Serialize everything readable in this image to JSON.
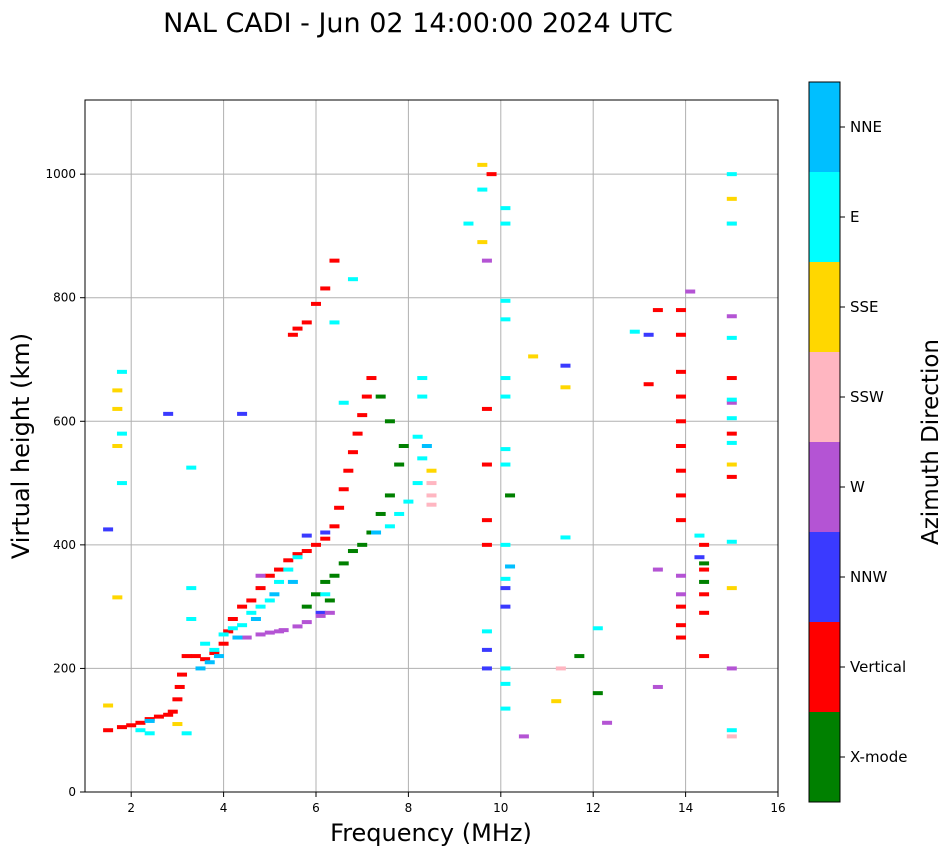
{
  "chart_data": {
    "type": "scatter",
    "title": "NAL CADI - Jun 02 14:00:00 2024 UTC",
    "xlabel": "Frequency (MHz)",
    "ylabel": "Virtual height (km)",
    "xlim": [
      1,
      16
    ],
    "ylim": [
      0,
      1120
    ],
    "xticks": [
      2,
      4,
      6,
      8,
      10,
      12,
      14,
      16
    ],
    "yticks": [
      0,
      200,
      400,
      600,
      800,
      1000
    ],
    "grid": true,
    "colorbar": {
      "label": "Azimuth Direction",
      "categories": [
        {
          "name": "X-mode",
          "color": "#008000"
        },
        {
          "name": "Vertical",
          "color": "#ff0000"
        },
        {
          "name": "NNW",
          "color": "#3a3aff"
        },
        {
          "name": "W",
          "color": "#b454d4"
        },
        {
          "name": "SSW",
          "color": "#ffb6c1"
        },
        {
          "name": "SSE",
          "color": "#ffd700"
        },
        {
          "name": "E",
          "color": "#00ffff"
        },
        {
          "name": "NNE",
          "color": "#00bfff"
        }
      ]
    },
    "series": [
      {
        "name": "Vertical",
        "points": [
          [
            1.5,
            100
          ],
          [
            1.8,
            105
          ],
          [
            2.0,
            108
          ],
          [
            2.2,
            112
          ],
          [
            2.4,
            118
          ],
          [
            2.6,
            122
          ],
          [
            2.8,
            125
          ],
          [
            2.9,
            130
          ],
          [
            3.0,
            150
          ],
          [
            3.05,
            170
          ],
          [
            3.1,
            190
          ],
          [
            3.2,
            220
          ],
          [
            3.4,
            220
          ],
          [
            3.6,
            215
          ],
          [
            3.8,
            225
          ],
          [
            4.0,
            240
          ],
          [
            4.1,
            260
          ],
          [
            4.2,
            280
          ],
          [
            4.4,
            300
          ],
          [
            4.6,
            310
          ],
          [
            4.8,
            330
          ],
          [
            5.0,
            350
          ],
          [
            5.2,
            360
          ],
          [
            5.4,
            375
          ],
          [
            5.6,
            385
          ],
          [
            5.8,
            390
          ],
          [
            6.0,
            400
          ],
          [
            6.2,
            410
          ],
          [
            6.4,
            430
          ],
          [
            6.5,
            460
          ],
          [
            6.6,
            490
          ],
          [
            6.7,
            520
          ],
          [
            6.8,
            550
          ],
          [
            6.9,
            580
          ],
          [
            7.0,
            610
          ],
          [
            7.1,
            640
          ],
          [
            7.2,
            670
          ],
          [
            5.5,
            740
          ],
          [
            5.6,
            750
          ],
          [
            5.8,
            760
          ],
          [
            6.0,
            790
          ],
          [
            6.2,
            815
          ],
          [
            6.4,
            860
          ],
          [
            9.7,
            620
          ],
          [
            9.7,
            530
          ],
          [
            9.7,
            440
          ],
          [
            9.7,
            400
          ],
          [
            9.8,
            1000
          ],
          [
            14.4,
            400
          ],
          [
            14.4,
            360
          ],
          [
            14.4,
            320
          ],
          [
            14.4,
            290
          ],
          [
            14.4,
            220
          ],
          [
            13.9,
            780
          ],
          [
            13.9,
            740
          ],
          [
            13.9,
            680
          ],
          [
            13.9,
            640
          ],
          [
            13.9,
            600
          ],
          [
            13.9,
            560
          ],
          [
            13.9,
            520
          ],
          [
            13.9,
            480
          ],
          [
            13.9,
            440
          ],
          [
            13.9,
            300
          ],
          [
            13.9,
            270
          ],
          [
            13.9,
            250
          ],
          [
            13.4,
            780
          ],
          [
            13.2,
            660
          ],
          [
            15.0,
            670
          ],
          [
            15.0,
            580
          ],
          [
            15.0,
            510
          ]
        ]
      },
      {
        "name": "X-mode",
        "points": [
          [
            6.0,
            320
          ],
          [
            6.2,
            340
          ],
          [
            6.4,
            350
          ],
          [
            6.6,
            370
          ],
          [
            6.8,
            390
          ],
          [
            7.0,
            400
          ],
          [
            7.2,
            420
          ],
          [
            7.4,
            450
          ],
          [
            7.6,
            480
          ],
          [
            7.8,
            530
          ],
          [
            7.9,
            560
          ],
          [
            7.6,
            600
          ],
          [
            7.4,
            640
          ],
          [
            6.3,
            310
          ],
          [
            5.8,
            300
          ],
          [
            10.2,
            480
          ],
          [
            14.4,
            340
          ],
          [
            14.4,
            370
          ],
          [
            11.7,
            220
          ],
          [
            12.1,
            160
          ]
        ]
      },
      {
        "name": "NNW",
        "points": [
          [
            1.5,
            425
          ],
          [
            2.8,
            612
          ],
          [
            4.4,
            612
          ],
          [
            6.1,
            290
          ],
          [
            6.2,
            420
          ],
          [
            5.8,
            415
          ],
          [
            10.1,
            330
          ],
          [
            10.1,
            300
          ],
          [
            9.7,
            230
          ],
          [
            9.7,
            200
          ],
          [
            11.4,
            690
          ],
          [
            13.2,
            740
          ],
          [
            14.3,
            380
          ]
        ]
      },
      {
        "name": "W",
        "points": [
          [
            4.5,
            250
          ],
          [
            4.8,
            255
          ],
          [
            5.0,
            258
          ],
          [
            5.3,
            262
          ],
          [
            5.6,
            268
          ],
          [
            5.8,
            275
          ],
          [
            6.1,
            285
          ],
          [
            6.3,
            290
          ],
          [
            4.8,
            350
          ],
          [
            5.2,
            260
          ],
          [
            9.7,
            860
          ],
          [
            10.5,
            90
          ],
          [
            12.3,
            112
          ],
          [
            13.4,
            360
          ],
          [
            13.4,
            170
          ],
          [
            13.9,
            350
          ],
          [
            13.9,
            320
          ],
          [
            14.1,
            810
          ],
          [
            15.0,
            770
          ],
          [
            15.0,
            630
          ],
          [
            15.0,
            200
          ]
        ]
      },
      {
        "name": "SSW",
        "points": [
          [
            8.5,
            500
          ],
          [
            8.5,
            480
          ],
          [
            8.5,
            465
          ],
          [
            15.0,
            920
          ],
          [
            15.0,
            90
          ],
          [
            11.3,
            200
          ]
        ]
      },
      {
        "name": "SSE",
        "points": [
          [
            1.5,
            140
          ],
          [
            1.7,
            315
          ],
          [
            1.7,
            560
          ],
          [
            1.7,
            620
          ],
          [
            1.7,
            650
          ],
          [
            3.0,
            110
          ],
          [
            9.6,
            1015
          ],
          [
            9.6,
            890
          ],
          [
            10.7,
            705
          ],
          [
            11.4,
            655
          ],
          [
            11.2,
            147
          ],
          [
            15.0,
            960
          ],
          [
            15.0,
            530
          ],
          [
            15.0,
            330
          ],
          [
            8.5,
            520
          ]
        ]
      },
      {
        "name": "E",
        "points": [
          [
            1.8,
            680
          ],
          [
            1.8,
            580
          ],
          [
            1.8,
            500
          ],
          [
            2.2,
            100
          ],
          [
            2.4,
            95
          ],
          [
            3.2,
            95
          ],
          [
            3.3,
            525
          ],
          [
            3.3,
            330
          ],
          [
            3.3,
            280
          ],
          [
            3.6,
            240
          ],
          [
            3.8,
            230
          ],
          [
            4.0,
            255
          ],
          [
            4.2,
            265
          ],
          [
            4.4,
            270
          ],
          [
            4.6,
            290
          ],
          [
            4.8,
            300
          ],
          [
            5.0,
            310
          ],
          [
            5.2,
            340
          ],
          [
            5.4,
            360
          ],
          [
            5.6,
            380
          ],
          [
            6.2,
            320
          ],
          [
            6.4,
            760
          ],
          [
            6.6,
            630
          ],
          [
            6.8,
            830
          ],
          [
            7.6,
            430
          ],
          [
            7.8,
            450
          ],
          [
            8.0,
            470
          ],
          [
            8.2,
            500
          ],
          [
            8.3,
            540
          ],
          [
            8.2,
            575
          ],
          [
            8.3,
            640
          ],
          [
            8.3,
            670
          ],
          [
            9.3,
            920
          ],
          [
            9.6,
            975
          ],
          [
            9.7,
            260
          ],
          [
            10.1,
            945
          ],
          [
            10.1,
            920
          ],
          [
            10.1,
            795
          ],
          [
            10.1,
            765
          ],
          [
            10.1,
            670
          ],
          [
            10.1,
            640
          ],
          [
            10.1,
            555
          ],
          [
            10.1,
            530
          ],
          [
            10.1,
            400
          ],
          [
            10.1,
            345
          ],
          [
            10.1,
            200
          ],
          [
            10.1,
            175
          ],
          [
            10.1,
            135
          ],
          [
            11.4,
            412
          ],
          [
            12.1,
            265
          ],
          [
            12.9,
            745
          ],
          [
            14.3,
            415
          ],
          [
            15.0,
            1000
          ],
          [
            15.0,
            920
          ],
          [
            15.0,
            735
          ],
          [
            15.0,
            635
          ],
          [
            15.0,
            605
          ],
          [
            15.0,
            565
          ],
          [
            15.0,
            405
          ],
          [
            15.0,
            100
          ]
        ]
      },
      {
        "name": "NNE",
        "points": [
          [
            2.4,
            115
          ],
          [
            3.5,
            200
          ],
          [
            3.7,
            210
          ],
          [
            3.9,
            220
          ],
          [
            4.3,
            250
          ],
          [
            4.7,
            280
          ],
          [
            5.1,
            320
          ],
          [
            5.5,
            340
          ],
          [
            7.3,
            420
          ],
          [
            8.4,
            560
          ],
          [
            10.2,
            365
          ]
        ]
      }
    ]
  }
}
